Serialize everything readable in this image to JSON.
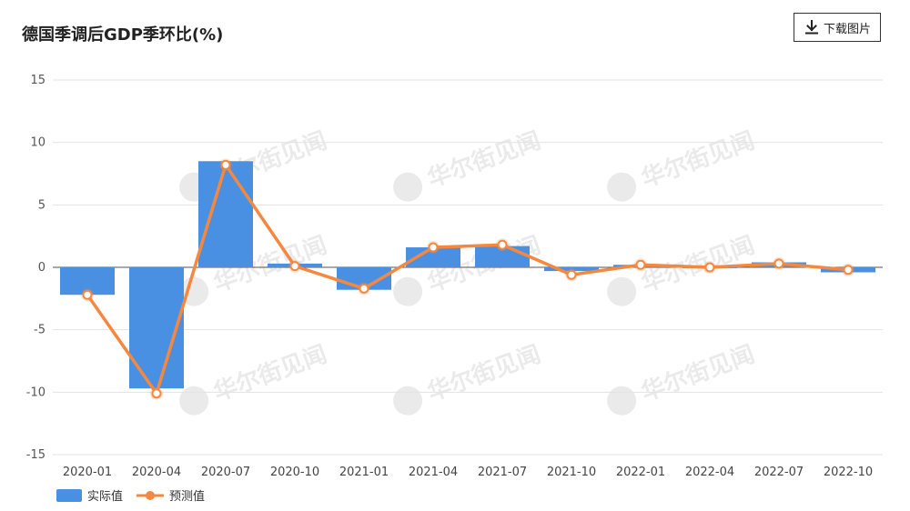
{
  "header": {
    "download_label": "下载图片",
    "download_icon": "download-icon"
  },
  "watermark": "华尔街见闻",
  "colors": {
    "actual": "#4a90e2",
    "forecast": "#f5883f",
    "grid": "#e3e3e3",
    "axis": "#8c8c8c"
  },
  "chart_data": {
    "type": "bar",
    "title": "德国季调后GDP季环比(%)",
    "xlabel": "",
    "ylabel": "",
    "categories": [
      "2020-01",
      "2020-04",
      "2020-07",
      "2020-10",
      "2021-01",
      "2021-04",
      "2021-07",
      "2021-10",
      "2022-01",
      "2022-04",
      "2022-07",
      "2022-10"
    ],
    "ylim": [
      -15,
      15
    ],
    "yticks": [
      15,
      10,
      5,
      0,
      -5,
      -10,
      -15
    ],
    "grid": true,
    "legend_position": "bottom-left",
    "series": [
      {
        "name": "实际值",
        "type": "bar",
        "values": [
          -2.2,
          -9.7,
          8.5,
          0.3,
          -1.8,
          1.6,
          1.7,
          -0.3,
          0.2,
          0.0,
          0.4,
          -0.4
        ]
      },
      {
        "name": "预测值",
        "type": "line",
        "values": [
          -2.2,
          -10.1,
          8.2,
          0.1,
          -1.7,
          1.6,
          1.8,
          -0.6,
          0.2,
          0.0,
          0.3,
          -0.2
        ]
      }
    ]
  }
}
